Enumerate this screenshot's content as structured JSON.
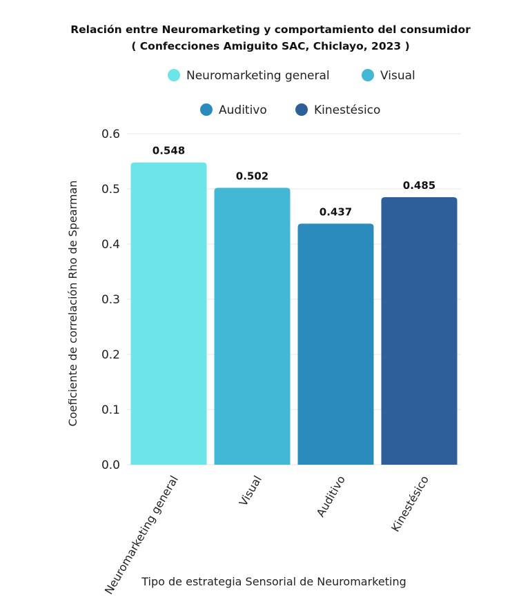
{
  "chart_data": {
    "type": "bar",
    "title": "Relación entre Neuromarketing y comportamiento del consumidor",
    "subtitle": "( Confecciones Amiguito SAC, Chiclayo, 2023 )",
    "xlabel": "Tipo de estrategia Sensorial de Neuromarketing",
    "ylabel": "Coeficiente de correlación Rho de Spearman",
    "categories": [
      "Neuromarketing general",
      "Visual",
      "Auditivo",
      "Kinestésico"
    ],
    "values": [
      0.548,
      0.502,
      0.437,
      0.485
    ],
    "data_labels": [
      "0.548",
      "0.502",
      "0.437",
      "0.485"
    ],
    "colors": [
      "#6ce4e8",
      "#42b8d6",
      "#2b8bbd",
      "#2e5f98"
    ],
    "legend": {
      "placement": "top-center",
      "entries": [
        "Neuromarketing general",
        "Visual",
        "Auditivo",
        "Kinestésico"
      ]
    },
    "ylim": [
      0,
      0.6
    ],
    "yticks": [
      "0.0",
      "0.1",
      "0.2",
      "0.3",
      "0.4",
      "0.5",
      "0.6"
    ],
    "grid": true
  }
}
